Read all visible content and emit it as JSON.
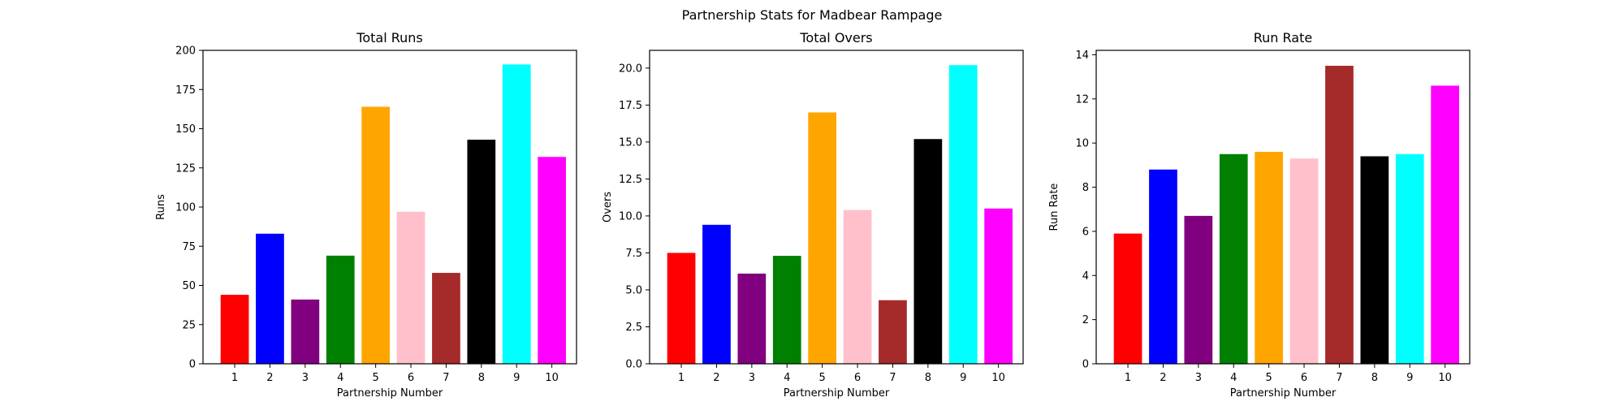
{
  "figure": {
    "suptitle": "Partnership Stats for Madbear Rampage"
  },
  "chart_data": [
    {
      "type": "bar",
      "title": "Total Runs",
      "xlabel": "Partnership Number",
      "ylabel": "Runs",
      "categories": [
        "1",
        "2",
        "3",
        "4",
        "5",
        "6",
        "7",
        "8",
        "9",
        "10"
      ],
      "values": [
        44,
        83,
        41,
        69,
        164,
        97,
        58,
        143,
        191,
        132
      ],
      "colors": [
        "#ff0000",
        "#0000ff",
        "#800080",
        "#008000",
        "#ffa500",
        "#ffc0cb",
        "#a52a2a",
        "#000000",
        "#00ffff",
        "#ff00ff"
      ],
      "ylim": [
        0,
        200
      ],
      "yticks": [
        0,
        25,
        50,
        75,
        100,
        125,
        150,
        175,
        200
      ],
      "ytick_labels": [
        "0",
        "25",
        "50",
        "75",
        "100",
        "125",
        "150",
        "175",
        "200"
      ],
      "grid": false
    },
    {
      "type": "bar",
      "title": "Total Overs",
      "xlabel": "Partnership Number",
      "ylabel": "Overs",
      "categories": [
        "1",
        "2",
        "3",
        "4",
        "5",
        "6",
        "7",
        "8",
        "9",
        "10"
      ],
      "values": [
        7.5,
        9.4,
        6.1,
        7.3,
        17.0,
        10.4,
        4.3,
        15.2,
        20.2,
        10.5
      ],
      "colors": [
        "#ff0000",
        "#0000ff",
        "#800080",
        "#008000",
        "#ffa500",
        "#ffc0cb",
        "#a52a2a",
        "#000000",
        "#00ffff",
        "#ff00ff"
      ],
      "ylim": [
        0,
        21.2
      ],
      "yticks": [
        0,
        2.5,
        5,
        7.5,
        10,
        12.5,
        15,
        17.5,
        20
      ],
      "ytick_labels": [
        "0.0",
        "2.5",
        "5.0",
        "7.5",
        "10.0",
        "12.5",
        "15.0",
        "17.5",
        "20.0"
      ],
      "grid": false
    },
    {
      "type": "bar",
      "title": "Run Rate",
      "xlabel": "Partnership Number",
      "ylabel": "Run Rate",
      "categories": [
        "1",
        "2",
        "3",
        "4",
        "5",
        "6",
        "7",
        "8",
        "9",
        "10"
      ],
      "values": [
        5.9,
        8.8,
        6.7,
        9.5,
        9.6,
        9.3,
        13.5,
        9.4,
        9.5,
        12.6
      ],
      "colors": [
        "#ff0000",
        "#0000ff",
        "#800080",
        "#008000",
        "#ffa500",
        "#ffc0cb",
        "#a52a2a",
        "#000000",
        "#00ffff",
        "#ff00ff"
      ],
      "ylim": [
        0,
        14.2
      ],
      "yticks": [
        0,
        2,
        4,
        6,
        8,
        10,
        12,
        14
      ],
      "ytick_labels": [
        "0",
        "2",
        "4",
        "6",
        "8",
        "10",
        "12",
        "14"
      ],
      "grid": false
    }
  ]
}
